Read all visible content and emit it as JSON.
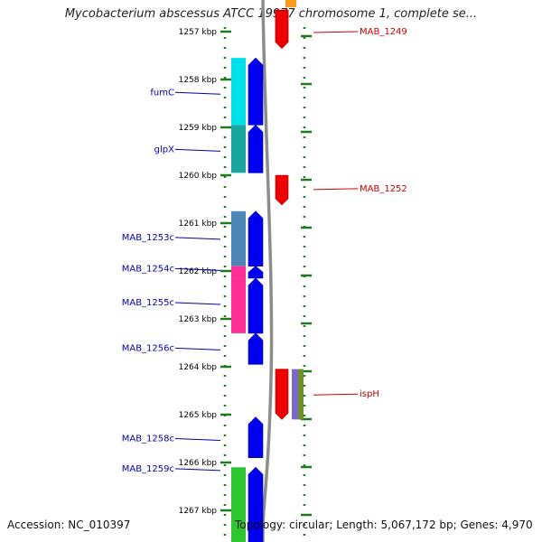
{
  "title": "Mycobacterium abscessus ATCC 19977 chromosome 1, complete se...",
  "accession": "Accession: NC_010397",
  "summary": "Topology: circular; Length: 5,067,172 bp; Genes: 4,970",
  "colors": {
    "backbone": "#8c8c8c",
    "tick": "#1f7a1f",
    "forward_cds": "#0000ee",
    "reverse_cds": "#ee0000",
    "forward_label": "#0000aa",
    "reverse_label": "#cc0000",
    "cog_cyan": "#00e0e8",
    "cog_teal": "#1aa6a0",
    "cog_steel": "#4f86b8",
    "cog_pink": "#ff2d95",
    "cog_green": "#2ec62e",
    "cog_purple": "#7b68c8",
    "cog_olive": "#6f8f2a",
    "cog_orange": "#ff9a1a"
  },
  "axis": {
    "unit": "kbp",
    "ticks": [
      {
        "label": "1257 kbp",
        "kbp": 1257
      },
      {
        "label": "1258 kbp",
        "kbp": 1258
      },
      {
        "label": "1259 kbp",
        "kbp": 1259
      },
      {
        "label": "1260 kbp",
        "kbp": 1260
      },
      {
        "label": "1261 kbp",
        "kbp": 1261
      },
      {
        "label": "1262 kbp",
        "kbp": 1262
      },
      {
        "label": "1263 kbp",
        "kbp": 1263
      },
      {
        "label": "1264 kbp",
        "kbp": 1264
      },
      {
        "label": "1265 kbp",
        "kbp": 1265
      },
      {
        "label": "1266 kbp",
        "kbp": 1266
      },
      {
        "label": "1267 kbp",
        "kbp": 1267
      }
    ]
  },
  "genes": [
    {
      "label": "",
      "strand": "reverse",
      "start": 1256.55,
      "end": 1257.35
    },
    {
      "label": "MAB_1249",
      "strand": "reverse",
      "start": 1256.55,
      "end": 1257.35,
      "label_kbp": 1257.0
    },
    {
      "label": "fumC",
      "strand": "forward",
      "start": 1257.55,
      "end": 1258.95,
      "label_kbp": 1258.27,
      "cog": "cog_cyan"
    },
    {
      "label": "glpX",
      "strand": "forward",
      "start": 1258.95,
      "end": 1259.95,
      "label_kbp": 1259.46,
      "cog": "cog_teal"
    },
    {
      "label": "MAB_1252",
      "strand": "reverse",
      "start": 1260.0,
      "end": 1260.62,
      "label_kbp": 1260.28
    },
    {
      "label": "MAB_1253c",
      "strand": "forward",
      "start": 1260.75,
      "end": 1261.9,
      "label_kbp": 1261.3,
      "cog": "cog_steel"
    },
    {
      "label": "MAB_1254c",
      "strand": "forward",
      "start": 1261.9,
      "end": 1262.15,
      "label_kbp": 1261.95,
      "cog": "cog_pink"
    },
    {
      "label": "MAB_1255c",
      "strand": "forward",
      "start": 1262.15,
      "end": 1263.3,
      "label_kbp": 1262.66,
      "cog": "cog_pink"
    },
    {
      "label": "MAB_1256c",
      "strand": "forward",
      "start": 1263.3,
      "end": 1263.95,
      "label_kbp": 1263.61
    },
    {
      "label": "ispH",
      "strand": "reverse",
      "start": 1264.05,
      "end": 1265.1,
      "label_kbp": 1264.57,
      "cog": "cog_purple"
    },
    {
      "label": "MAB_1258c",
      "strand": "forward",
      "start": 1265.05,
      "end": 1265.9,
      "label_kbp": 1265.5
    },
    {
      "label": "MAB_1259c",
      "strand": "forward",
      "start": 1266.1,
      "end": 1267.7,
      "label_kbp": 1266.13,
      "cog": "cog_green"
    }
  ]
}
